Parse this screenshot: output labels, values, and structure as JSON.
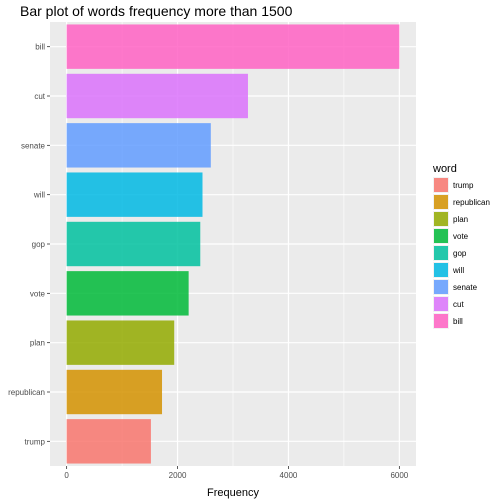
{
  "chart_data": {
    "type": "bar",
    "orientation": "horizontal",
    "title": "Bar plot of words frequency more than 1500",
    "xlabel": "Frequency",
    "ylabel": "",
    "xlim": [
      0,
      6300
    ],
    "x_ticks": [
      0,
      2000,
      4000,
      6000
    ],
    "grid": true,
    "categories": [
      "trump",
      "republican",
      "plan",
      "vote",
      "gop",
      "will",
      "senate",
      "cut",
      "bill"
    ],
    "values": [
      1520,
      1720,
      1940,
      2200,
      2410,
      2450,
      2600,
      3270,
      6000
    ],
    "colors": [
      "#F8766D",
      "#D39200",
      "#93AA00",
      "#00BA38",
      "#00C19F",
      "#00B9E3",
      "#619CFF",
      "#DB72FB",
      "#FF61C3"
    ],
    "legend": {
      "title": "word",
      "position": "right",
      "entries": [
        "trump",
        "republican",
        "plan",
        "vote",
        "gop",
        "will",
        "senate",
        "cut",
        "bill"
      ]
    }
  }
}
